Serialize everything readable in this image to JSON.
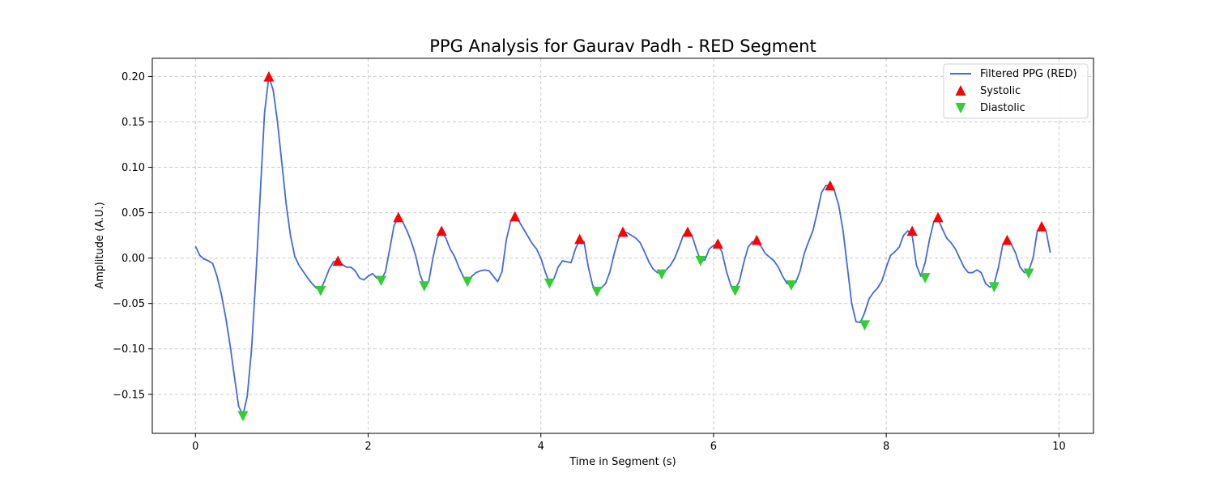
{
  "chart_data": {
    "type": "line",
    "title": "PPG Analysis for Gaurav Padh - RED Segment",
    "xlabel": "Time in Segment (s)",
    "ylabel": "Amplitude (A.U.)",
    "xlim": [
      -0.5,
      10.4
    ],
    "ylim": [
      -0.193,
      0.22
    ],
    "xticks": [
      0,
      2,
      4,
      6,
      8,
      10
    ],
    "xtick_labels": [
      "0",
      "2",
      "4",
      "6",
      "8",
      "10"
    ],
    "yticks": [
      -0.15,
      -0.1,
      -0.05,
      0.0,
      0.05,
      0.1,
      0.15,
      0.2
    ],
    "ytick_labels": [
      "−0.15",
      "−0.10",
      "−0.05",
      "0.00",
      "0.05",
      "0.10",
      "0.15",
      "0.20"
    ],
    "grid": true,
    "legend_position": "top-right",
    "colors": {
      "line": "#4169e1",
      "systolic": "#ff0000",
      "diastolic": "#32cd32",
      "grid": "#cccccc"
    },
    "series": [
      {
        "name": "Filtered PPG (RED)",
        "kind": "line",
        "points": [
          [
            0.0,
            0.013
          ],
          [
            0.05,
            0.003
          ],
          [
            0.1,
            -0.001
          ],
          [
            0.15,
            -0.003
          ],
          [
            0.2,
            -0.006
          ],
          [
            0.25,
            -0.02
          ],
          [
            0.3,
            -0.04
          ],
          [
            0.35,
            -0.065
          ],
          [
            0.4,
            -0.095
          ],
          [
            0.45,
            -0.13
          ],
          [
            0.5,
            -0.163
          ],
          [
            0.55,
            -0.173
          ],
          [
            0.6,
            -0.152
          ],
          [
            0.65,
            -0.1
          ],
          [
            0.7,
            -0.02
          ],
          [
            0.75,
            0.07
          ],
          [
            0.8,
            0.16
          ],
          [
            0.85,
            0.2
          ],
          [
            0.9,
            0.185
          ],
          [
            0.95,
            0.15
          ],
          [
            1.0,
            0.105
          ],
          [
            1.05,
            0.06
          ],
          [
            1.1,
            0.025
          ],
          [
            1.15,
            0.002
          ],
          [
            1.2,
            -0.008
          ],
          [
            1.25,
            -0.015
          ],
          [
            1.3,
            -0.022
          ],
          [
            1.35,
            -0.028
          ],
          [
            1.4,
            -0.033
          ],
          [
            1.45,
            -0.035
          ],
          [
            1.5,
            -0.024
          ],
          [
            1.55,
            -0.012
          ],
          [
            1.6,
            -0.004
          ],
          [
            1.65,
            -0.003
          ],
          [
            1.7,
            -0.007
          ],
          [
            1.75,
            -0.01
          ],
          [
            1.8,
            -0.01
          ],
          [
            1.85,
            -0.014
          ],
          [
            1.9,
            -0.022
          ],
          [
            1.95,
            -0.024
          ],
          [
            2.0,
            -0.02
          ],
          [
            2.05,
            -0.017
          ],
          [
            2.1,
            -0.022
          ],
          [
            2.15,
            -0.024
          ],
          [
            2.2,
            -0.015
          ],
          [
            2.25,
            0.01
          ],
          [
            2.3,
            0.036
          ],
          [
            2.35,
            0.044
          ],
          [
            2.4,
            0.04
          ],
          [
            2.45,
            0.03
          ],
          [
            2.5,
            0.018
          ],
          [
            2.55,
            0.003
          ],
          [
            2.6,
            -0.018
          ],
          [
            2.65,
            -0.03
          ],
          [
            2.7,
            -0.027
          ],
          [
            2.75,
            0.0
          ],
          [
            2.8,
            0.022
          ],
          [
            2.85,
            0.03
          ],
          [
            2.9,
            0.022
          ],
          [
            2.95,
            0.01
          ],
          [
            3.0,
            0.002
          ],
          [
            3.05,
            -0.01
          ],
          [
            3.1,
            -0.02
          ],
          [
            3.15,
            -0.025
          ],
          [
            3.2,
            -0.02
          ],
          [
            3.25,
            -0.016
          ],
          [
            3.3,
            -0.014
          ],
          [
            3.35,
            -0.013
          ],
          [
            3.4,
            -0.014
          ],
          [
            3.45,
            -0.02
          ],
          [
            3.5,
            -0.026
          ],
          [
            3.55,
            -0.015
          ],
          [
            3.6,
            0.02
          ],
          [
            3.65,
            0.04
          ],
          [
            3.7,
            0.045
          ],
          [
            3.75,
            0.04
          ],
          [
            3.8,
            0.032
          ],
          [
            3.85,
            0.024
          ],
          [
            3.9,
            0.016
          ],
          [
            3.95,
            0.01
          ],
          [
            4.0,
            0.0
          ],
          [
            4.05,
            -0.015
          ],
          [
            4.1,
            -0.027
          ],
          [
            4.15,
            -0.023
          ],
          [
            4.2,
            -0.01
          ],
          [
            4.25,
            -0.003
          ],
          [
            4.3,
            -0.004
          ],
          [
            4.35,
            -0.005
          ],
          [
            4.4,
            0.01
          ],
          [
            4.45,
            0.02
          ],
          [
            4.5,
            0.018
          ],
          [
            4.55,
            -0.01
          ],
          [
            4.6,
            -0.03
          ],
          [
            4.65,
            -0.036
          ],
          [
            4.7,
            -0.033
          ],
          [
            4.75,
            -0.028
          ],
          [
            4.8,
            -0.015
          ],
          [
            4.85,
            0.005
          ],
          [
            4.9,
            0.022
          ],
          [
            4.95,
            0.028
          ],
          [
            5.0,
            0.028
          ],
          [
            5.05,
            0.025
          ],
          [
            5.1,
            0.022
          ],
          [
            5.15,
            0.017
          ],
          [
            5.2,
            0.007
          ],
          [
            5.25,
            -0.004
          ],
          [
            5.3,
            -0.012
          ],
          [
            5.35,
            -0.016
          ],
          [
            5.4,
            -0.017
          ],
          [
            5.45,
            -0.013
          ],
          [
            5.5,
            -0.008
          ],
          [
            5.55,
            0.0
          ],
          [
            5.6,
            0.012
          ],
          [
            5.65,
            0.025
          ],
          [
            5.7,
            0.029
          ],
          [
            5.75,
            0.025
          ],
          [
            5.8,
            0.01
          ],
          [
            5.85,
            -0.003
          ],
          [
            5.9,
            -0.002
          ],
          [
            5.95,
            0.01
          ],
          [
            6.0,
            0.014
          ],
          [
            6.05,
            0.016
          ],
          [
            6.1,
            0.006
          ],
          [
            6.15,
            -0.015
          ],
          [
            6.2,
            -0.03
          ],
          [
            6.25,
            -0.035
          ],
          [
            6.3,
            -0.025
          ],
          [
            6.35,
            -0.005
          ],
          [
            6.4,
            0.012
          ],
          [
            6.45,
            0.018
          ],
          [
            6.5,
            0.018
          ],
          [
            6.55,
            0.013
          ],
          [
            6.6,
            0.005
          ],
          [
            6.65,
            0.001
          ],
          [
            6.7,
            -0.003
          ],
          [
            6.75,
            -0.01
          ],
          [
            6.8,
            -0.02
          ],
          [
            6.85,
            -0.028
          ],
          [
            6.9,
            -0.029
          ],
          [
            6.95,
            -0.027
          ],
          [
            7.0,
            -0.015
          ],
          [
            7.05,
            0.005
          ],
          [
            7.1,
            0.018
          ],
          [
            7.15,
            0.03
          ],
          [
            7.2,
            0.05
          ],
          [
            7.25,
            0.072
          ],
          [
            7.3,
            0.08
          ],
          [
            7.35,
            0.08
          ],
          [
            7.4,
            0.074
          ],
          [
            7.45,
            0.058
          ],
          [
            7.5,
            0.03
          ],
          [
            7.55,
            -0.01
          ],
          [
            7.6,
            -0.05
          ],
          [
            7.65,
            -0.07
          ],
          [
            7.7,
            -0.071
          ],
          [
            7.75,
            -0.06
          ],
          [
            7.8,
            -0.045
          ],
          [
            7.85,
            -0.038
          ],
          [
            7.9,
            -0.033
          ],
          [
            7.95,
            -0.025
          ],
          [
            8.0,
            -0.01
          ],
          [
            8.05,
            0.003
          ],
          [
            8.1,
            0.007
          ],
          [
            8.15,
            0.012
          ],
          [
            8.2,
            0.025
          ],
          [
            8.25,
            0.03
          ],
          [
            8.3,
            0.025
          ],
          [
            8.35,
            -0.008
          ],
          [
            8.4,
            -0.02
          ],
          [
            8.45,
            -0.005
          ],
          [
            8.5,
            0.02
          ],
          [
            8.55,
            0.04
          ],
          [
            8.6,
            0.043
          ],
          [
            8.65,
            0.032
          ],
          [
            8.7,
            0.022
          ],
          [
            8.75,
            0.017
          ],
          [
            8.8,
            0.01
          ],
          [
            8.85,
            0.0
          ],
          [
            8.9,
            -0.01
          ],
          [
            8.95,
            -0.016
          ],
          [
            9.0,
            -0.016
          ],
          [
            9.05,
            -0.013
          ],
          [
            9.1,
            -0.016
          ],
          [
            9.15,
            -0.028
          ],
          [
            9.2,
            -0.032
          ],
          [
            9.25,
            -0.028
          ],
          [
            9.3,
            -0.01
          ],
          [
            9.35,
            0.015
          ],
          [
            9.4,
            0.019
          ],
          [
            9.45,
            0.015
          ],
          [
            9.5,
            0.005
          ],
          [
            9.55,
            -0.01
          ],
          [
            9.6,
            -0.016
          ],
          [
            9.65,
            -0.014
          ],
          [
            9.7,
            0.0
          ],
          [
            9.75,
            0.03
          ],
          [
            9.8,
            0.034
          ],
          [
            9.85,
            0.03
          ],
          [
            9.9,
            0.006
          ]
        ]
      },
      {
        "name": "Systolic",
        "kind": "marker",
        "marker": "triangle-up",
        "points": [
          [
            0.85,
            0.2
          ],
          [
            1.65,
            -0.003
          ],
          [
            2.35,
            0.045
          ],
          [
            2.85,
            0.03
          ],
          [
            3.7,
            0.046
          ],
          [
            4.45,
            0.021
          ],
          [
            4.95,
            0.029
          ],
          [
            5.7,
            0.029
          ],
          [
            6.05,
            0.016
          ],
          [
            6.5,
            0.02
          ],
          [
            7.35,
            0.08
          ],
          [
            8.3,
            0.03
          ],
          [
            8.6,
            0.045
          ],
          [
            9.4,
            0.02
          ],
          [
            9.8,
            0.035
          ]
        ]
      },
      {
        "name": "Diastolic",
        "kind": "marker",
        "marker": "triangle-down",
        "points": [
          [
            0.55,
            -0.174
          ],
          [
            1.45,
            -0.036
          ],
          [
            2.15,
            -0.025
          ],
          [
            2.65,
            -0.031
          ],
          [
            3.15,
            -0.026
          ],
          [
            4.1,
            -0.028
          ],
          [
            4.65,
            -0.037
          ],
          [
            5.4,
            -0.018
          ],
          [
            5.85,
            -0.003
          ],
          [
            6.25,
            -0.036
          ],
          [
            6.9,
            -0.03
          ],
          [
            7.75,
            -0.074
          ],
          [
            8.45,
            -0.022
          ],
          [
            9.25,
            -0.032
          ],
          [
            9.65,
            -0.017
          ]
        ]
      }
    ]
  }
}
